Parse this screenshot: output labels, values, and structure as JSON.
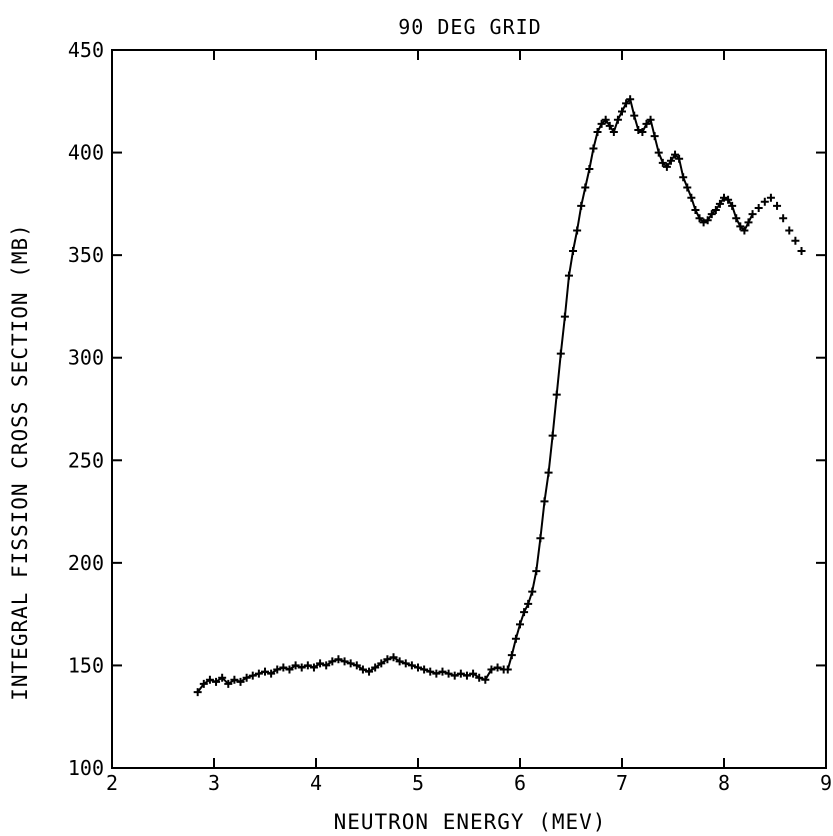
{
  "chart_data": {
    "type": "scatter",
    "title": "90 DEG GRID",
    "xlabel": "NEUTRON ENERGY (MEV)",
    "ylabel": "INTEGRAL FISSION CROSS SECTION (MB)",
    "xlim": [
      2,
      9
    ],
    "ylim": [
      100,
      450
    ],
    "xticks": [
      2,
      3,
      4,
      5,
      6,
      7,
      8,
      9
    ],
    "yticks": [
      100,
      150,
      200,
      250,
      300,
      350,
      400,
      450
    ],
    "grid": false,
    "marker": "plus",
    "line": "connected-through-points",
    "x": [
      2.84,
      2.9,
      2.96,
      3.02,
      3.08,
      3.14,
      3.2,
      3.26,
      3.32,
      3.38,
      3.44,
      3.5,
      3.56,
      3.62,
      3.68,
      3.74,
      3.8,
      3.86,
      3.92,
      3.98,
      4.04,
      4.1,
      4.16,
      4.22,
      4.28,
      4.34,
      4.4,
      4.46,
      4.52,
      4.58,
      4.64,
      4.7,
      4.76,
      4.82,
      4.88,
      4.94,
      5.0,
      5.06,
      5.12,
      5.18,
      5.24,
      5.3,
      5.36,
      5.42,
      5.48,
      5.54,
      5.6,
      5.66,
      5.72,
      5.78,
      5.84,
      5.88,
      5.92,
      5.96,
      6.0,
      6.04,
      6.08,
      6.12,
      6.16,
      6.2,
      6.24,
      6.28,
      6.32,
      6.36,
      6.4,
      6.44,
      6.48,
      6.52,
      6.56,
      6.6,
      6.64,
      6.68,
      6.72,
      6.76,
      6.8,
      6.84,
      6.88,
      6.92,
      6.96,
      7.0,
      7.04,
      7.08,
      7.12,
      7.16,
      7.2,
      7.24,
      7.28,
      7.32,
      7.36,
      7.4,
      7.44,
      7.48,
      7.52,
      7.56,
      7.6,
      7.64,
      7.68,
      7.72,
      7.76,
      7.8,
      7.84,
      7.88,
      7.92,
      7.96,
      8.0,
      8.04,
      8.08,
      8.12,
      8.16,
      8.2,
      8.24,
      8.28,
      8.34,
      8.4,
      8.46,
      8.52,
      8.58,
      8.64,
      8.7,
      8.76
    ],
    "y": [
      137,
      141,
      143,
      142,
      144,
      141,
      143,
      142,
      144,
      145,
      146,
      147,
      146,
      148,
      149,
      148,
      150,
      149,
      150,
      149,
      151,
      150,
      152,
      153,
      152,
      151,
      150,
      148,
      147,
      149,
      151,
      153,
      154,
      152,
      151,
      150,
      149,
      148,
      147,
      146,
      147,
      146,
      145,
      146,
      145,
      146,
      144,
      143,
      148,
      149,
      148,
      148,
      155,
      163,
      170,
      176,
      180,
      186,
      196,
      212,
      230,
      244,
      262,
      282,
      302,
      320,
      340,
      352,
      362,
      374,
      383,
      392,
      402,
      410,
      414,
      416,
      413,
      410,
      416,
      420,
      424,
      426,
      418,
      411,
      410,
      414,
      416,
      408,
      400,
      395,
      393,
      396,
      399,
      397,
      388,
      383,
      378,
      372,
      368,
      366,
      367,
      370,
      372,
      375,
      378,
      377,
      374,
      368,
      364,
      362,
      366,
      370,
      373,
      376,
      378,
      374,
      368,
      362,
      357,
      352
    ]
  }
}
